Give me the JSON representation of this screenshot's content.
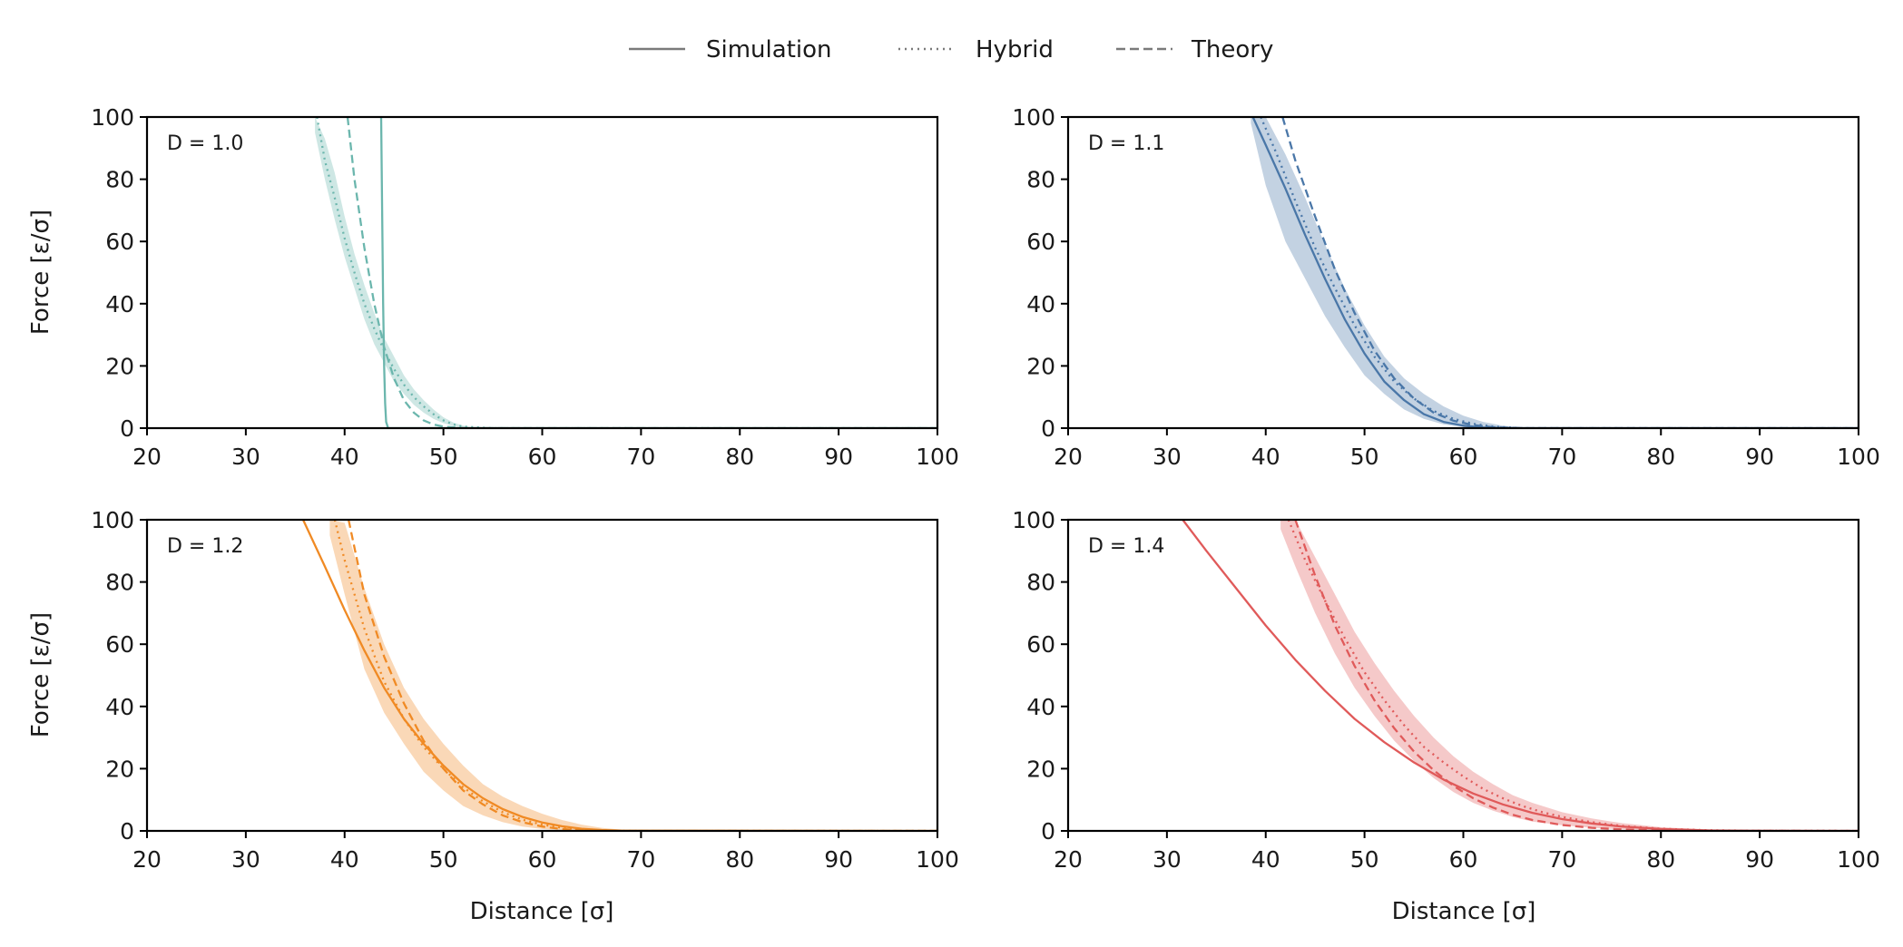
{
  "chart_data": {
    "type": "line",
    "legend": {
      "placement": "top-center",
      "entries": [
        {
          "label": "Simulation",
          "style": "solid"
        },
        {
          "label": "Hybrid",
          "style": "dotted"
        },
        {
          "label": "Theory",
          "style": "dashed"
        }
      ]
    },
    "xlabel": "Distance [σ]",
    "ylabel": "Force [ε/σ]",
    "xlim": [
      20,
      100
    ],
    "ylim": [
      0,
      100
    ],
    "xticks": [
      20,
      30,
      40,
      50,
      60,
      70,
      80,
      90,
      100
    ],
    "yticks": [
      0,
      20,
      40,
      60,
      80,
      100
    ],
    "grid": false,
    "panels": [
      {
        "annotation": "D = 1.0",
        "color": "#6bb6ad",
        "series": [
          {
            "name": "Simulation",
            "x": [
              43.7,
              43.8,
              43.9,
              44.0,
              44.1,
              44.2,
              44.4,
              100
            ],
            "y": [
              100,
              70,
              40,
              20,
              8,
              2,
              0,
              0
            ]
          },
          {
            "name": "Hybrid",
            "x": [
              37.2,
              38,
              39,
              40,
              41,
              42,
              43,
              44,
              45,
              46,
              47,
              48,
              49,
              50,
              51,
              52,
              55,
              60,
              100
            ],
            "y": [
              100,
              86,
              74,
              61,
              50,
              40,
              32,
              25,
              19,
              14,
              10,
              7,
              4.5,
              2.5,
              1.2,
              0.5,
              0,
              0,
              0
            ]
          },
          {
            "name": "Theory",
            "x": [
              40.3,
              41,
              42,
              43,
              44,
              45,
              46,
              47,
              48,
              49,
              50,
              52,
              55,
              100
            ],
            "y": [
              100,
              80,
              58,
              40,
              26,
              16,
              9,
              5,
              2.5,
              1.2,
              0.5,
              0,
              0,
              0
            ]
          }
        ],
        "band": {
          "x": [
            37,
            38,
            39,
            40,
            41,
            42,
            43,
            44,
            45,
            46,
            47,
            48,
            49,
            50,
            51,
            52,
            53
          ],
          "lower": [
            95,
            80,
            67,
            55,
            45,
            35,
            27,
            21,
            15,
            11,
            7.5,
            5,
            3,
            1.6,
            0.7,
            0.2,
            0
          ],
          "upper": [
            100,
            93,
            82,
            68,
            56,
            46,
            37,
            29,
            23,
            17,
            12.5,
            9,
            6,
            3.5,
            1.8,
            0.8,
            0.2
          ]
        }
      },
      {
        "annotation": "D = 1.1",
        "color": "#4a77a8",
        "series": [
          {
            "name": "Simulation",
            "x": [
              38.7,
              40,
              42,
              44,
              46,
              48,
              50,
              52,
              54,
              56,
              58,
              60,
              62,
              65,
              100
            ],
            "y": [
              100,
              91,
              77,
              62,
              48,
              35,
              24,
              15,
              9,
              4.5,
              2,
              0.8,
              0.2,
              0,
              0
            ]
          },
          {
            "name": "Hybrid",
            "x": [
              39.5,
              41,
              43,
              45,
              47,
              49,
              51,
              53,
              55,
              57,
              59,
              61,
              63,
              66,
              100
            ],
            "y": [
              100,
              89,
              73,
              58,
              45,
              33,
              23,
              15,
              9.5,
              5.5,
              3,
              1.4,
              0.5,
              0,
              0
            ]
          },
          {
            "name": "Theory",
            "x": [
              41.7,
              43,
              45,
              47,
              49,
              51,
              53,
              55,
              57,
              59,
              61,
              63,
              66,
              100
            ],
            "y": [
              100,
              86,
              68,
              51,
              37,
              25,
              16,
              9.5,
              5,
              2.4,
              1,
              0.3,
              0,
              0
            ]
          }
        ],
        "band": {
          "x": [
            38.5,
            40,
            42,
            44,
            46,
            48,
            50,
            52,
            54,
            56,
            58,
            60,
            62,
            64,
            66
          ],
          "lower": [
            98,
            78,
            60,
            48,
            36,
            26,
            17,
            11,
            6,
            3,
            1.2,
            0.4,
            0,
            0,
            0
          ],
          "upper": [
            100,
            100,
            88,
            74,
            59,
            45,
            33,
            23,
            16,
            11,
            7,
            4,
            2,
            0.8,
            0.2
          ]
        }
      },
      {
        "annotation": "D = 1.2",
        "color": "#f08a24",
        "series": [
          {
            "name": "Simulation",
            "x": [
              35.8,
              38,
              40,
              42,
              44,
              46,
              48,
              50,
              52,
              54,
              56,
              58,
              60,
              62,
              64,
              66,
              68,
              100
            ],
            "y": [
              100,
              85,
              71,
              58,
              46,
              36,
              28,
              21,
              15,
              10.5,
              7,
              4.5,
              2.7,
              1.5,
              0.7,
              0.3,
              0.1,
              0
            ]
          },
          {
            "name": "Hybrid",
            "x": [
              39.0,
              40,
              42,
              44,
              46,
              48,
              50,
              52,
              54,
              56,
              58,
              60,
              62,
              64,
              66,
              68,
              70,
              100
            ],
            "y": [
              100,
              87,
              65,
              48,
              36,
              27,
              20,
              14,
              9.5,
              6,
              3.6,
              2,
              1,
              0.4,
              0.15,
              0.05,
              0,
              0
            ]
          },
          {
            "name": "Theory",
            "x": [
              40.4,
              42,
              44,
              46,
              48,
              50,
              52,
              54,
              56,
              58,
              60,
              62,
              64,
              66,
              100
            ],
            "y": [
              100,
              76,
              56,
              41,
              29,
              20,
              13,
              8.5,
              5,
              2.8,
              1.4,
              0.6,
              0.2,
              0,
              0
            ]
          }
        ],
        "band": {
          "x": [
            38.5,
            40,
            42,
            44,
            46,
            48,
            50,
            52,
            54,
            56,
            58,
            60,
            62,
            64,
            66,
            68,
            70
          ],
          "lower": [
            95,
            76,
            52,
            38,
            28,
            19,
            13,
            8,
            5,
            2.8,
            1.4,
            0.6,
            0.2,
            0,
            0,
            0,
            0
          ],
          "upper": [
            100,
            99,
            78,
            60,
            46,
            36,
            28,
            21,
            15,
            11,
            8,
            5.5,
            3.5,
            2,
            1,
            0.4,
            0.1
          ]
        }
      },
      {
        "annotation": "D = 1.4",
        "color": "#e05a5a",
        "series": [
          {
            "name": "Simulation",
            "x": [
              31.6,
              34,
              37,
              40,
              43,
              46,
              49,
              52,
              55,
              58,
              61,
              64,
              67,
              70,
              73,
              76,
              80,
              85,
              90,
              100
            ],
            "y": [
              100,
              90,
              78,
              66,
              55,
              45,
              36,
              28.5,
              22,
              16.5,
              12,
              8.5,
              5.8,
              3.8,
              2.4,
              1.4,
              0.6,
              0.15,
              0.03,
              0
            ]
          },
          {
            "name": "Hybrid",
            "x": [
              42.3,
              44,
              46,
              48,
              50,
              52,
              54,
              56,
              58,
              60,
              62,
              64,
              66,
              68,
              70,
              73,
              76,
              80,
              85,
              90,
              100
            ],
            "y": [
              100,
              87,
              74,
              62,
              51,
              42,
              34,
              27,
              22,
              17.5,
              13.5,
              10.5,
              8,
              6,
              4.5,
              2.8,
              1.6,
              0.7,
              0.2,
              0.05,
              0
            ]
          },
          {
            "name": "Theory",
            "x": [
              43.0,
              45,
              47,
              49,
              51,
              53,
              55,
              57,
              59,
              61,
              63,
              65,
              67,
              70,
              73,
              76,
              80,
              85,
              100
            ],
            "y": [
              100,
              82,
              66,
              53,
              42,
              33,
              25.5,
              19.5,
              14.5,
              10.5,
              7.5,
              5.2,
              3.5,
              1.9,
              1,
              0.5,
              0.15,
              0.03,
              0
            ]
          }
        ],
        "band": {
          "x": [
            41.5,
            43,
            45,
            47,
            49,
            51,
            53,
            55,
            57,
            59,
            61,
            63,
            65,
            67,
            70,
            73,
            76,
            80,
            85,
            90
          ],
          "lower": [
            97,
            85,
            70,
            57,
            46,
            37,
            29,
            22.5,
            17,
            12.5,
            9,
            6.5,
            4.5,
            3,
            1.8,
            1,
            0.5,
            0.15,
            0,
            0
          ],
          "upper": [
            100,
            100,
            88,
            76,
            64,
            54,
            45,
            37,
            30,
            24,
            19,
            15,
            11.5,
            9,
            6,
            4,
            2.5,
            1.2,
            0.4,
            0.1
          ]
        }
      }
    ]
  }
}
